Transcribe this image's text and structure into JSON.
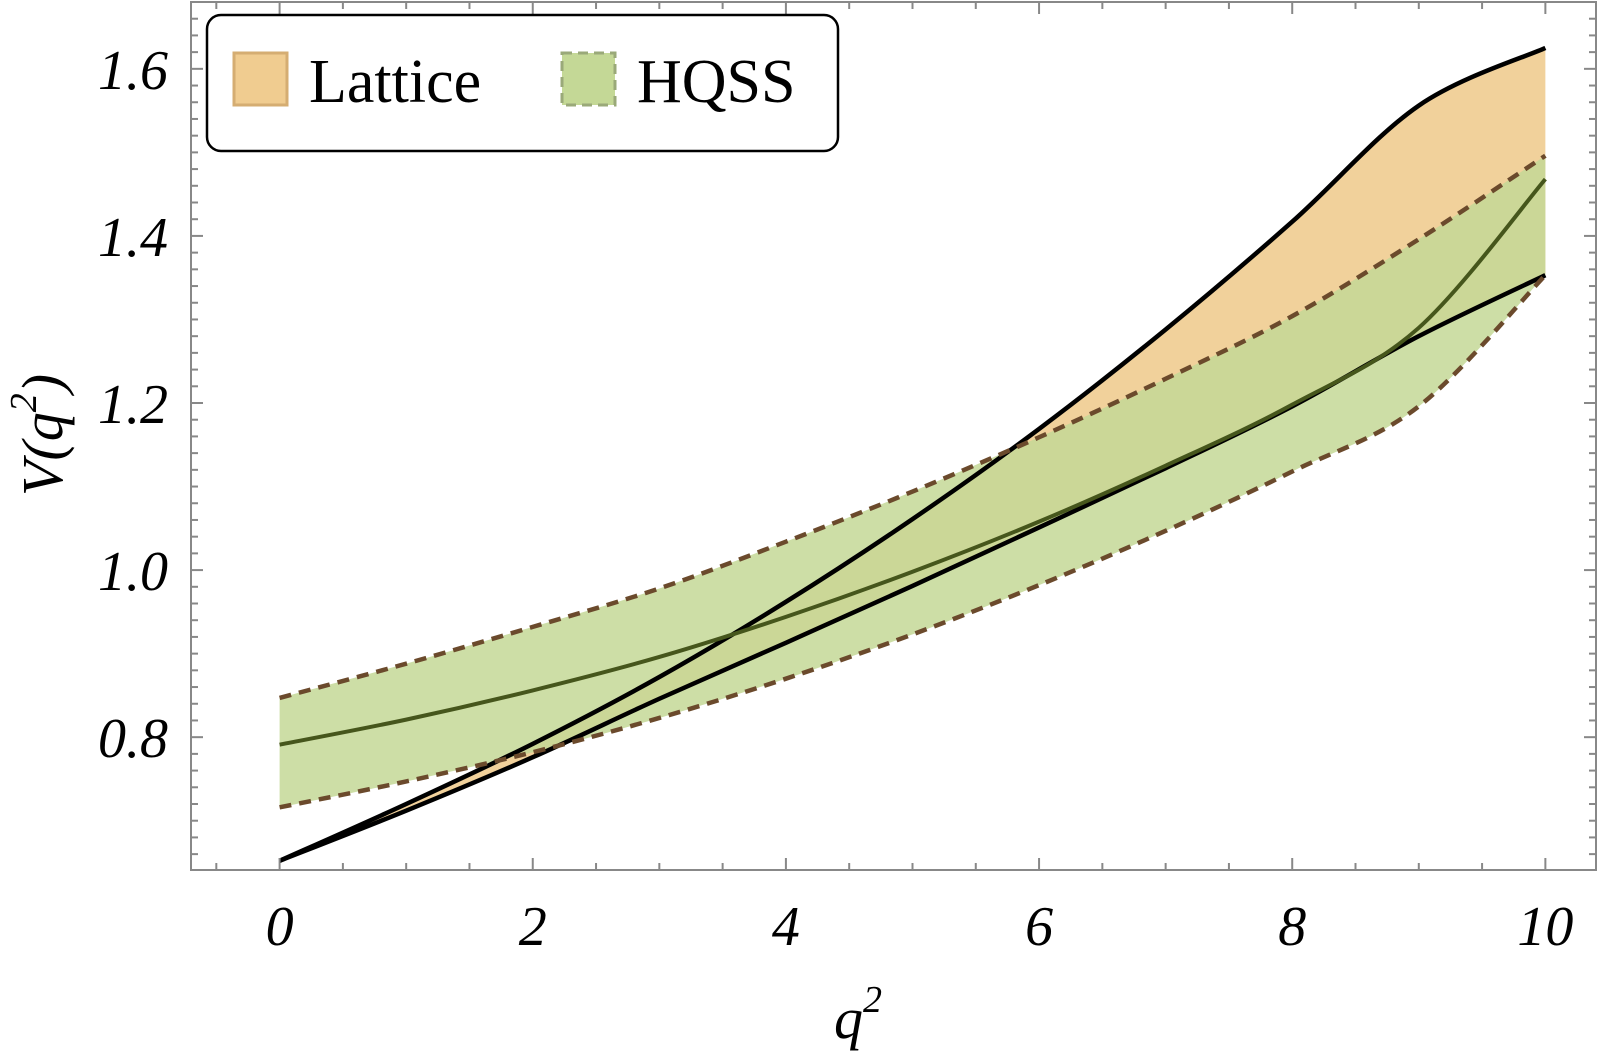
{
  "chart_data": {
    "type": "area",
    "xlabel": "q",
    "xlabel_sup": "2",
    "ylabel": "V(q",
    "ylabel_sup": "2",
    "ylabel_close": ")",
    "xlim": [
      -0.7,
      10.4
    ],
    "ylim": [
      0.641,
      1.68
    ],
    "x_ticks": [
      0,
      2,
      4,
      6,
      8,
      10
    ],
    "x_tick_labels": [
      "0",
      "2",
      "4",
      "6",
      "8",
      "10"
    ],
    "y_ticks": [
      0.8,
      1.0,
      1.2,
      1.4,
      1.6
    ],
    "y_tick_labels": [
      "0.8",
      "1.0",
      "1.2",
      "1.4",
      "1.6"
    ],
    "legend_position": "top-left",
    "grid": false,
    "x": [
      0,
      1,
      2,
      3,
      4,
      5,
      6,
      7,
      8,
      9,
      10
    ],
    "series": [
      {
        "name": "Lattice",
        "fill_color": "#f0cc90",
        "edge_color": "#000000",
        "upper": [
          0.652,
          0.712,
          0.776,
          0.846,
          0.923,
          1.007,
          1.098,
          1.197,
          1.304,
          1.419,
          1.542
        ],
        "lower": [
          0.652,
          0.712,
          0.776,
          0.846,
          0.923,
          1.007,
          1.098,
          1.197,
          1.304,
          1.419,
          1.542
        ]
      },
      {
        "name": "HQSS",
        "fill_color": "#c4d896",
        "edge_color": "#6b4a2c",
        "center_color": "#46561c",
        "upper": [
          0.847,
          0.888,
          0.932,
          0.978,
          1.034,
          1.094,
          1.159,
          1.229,
          1.304,
          1.396,
          1.496
        ],
        "center": [
          0.791,
          0.821,
          0.856,
          0.896,
          0.944,
          0.998,
          1.058,
          1.125,
          1.198,
          1.29,
          1.468
        ],
        "lower": [
          0.716,
          0.747,
          0.782,
          0.823,
          0.87,
          0.923,
          0.982,
          1.047,
          1.118,
          1.196,
          1.353
        ]
      }
    ],
    "lattice_upper": [
      0.652,
      0.72,
      0.792,
      0.872,
      0.962,
      1.061,
      1.169,
      1.288,
      1.417,
      1.556,
      1.625
    ],
    "lattice_lower": [
      0.652,
      0.712,
      0.776,
      0.846,
      0.913,
      0.981,
      1.051,
      1.122,
      1.196,
      1.28,
      1.353
    ]
  }
}
